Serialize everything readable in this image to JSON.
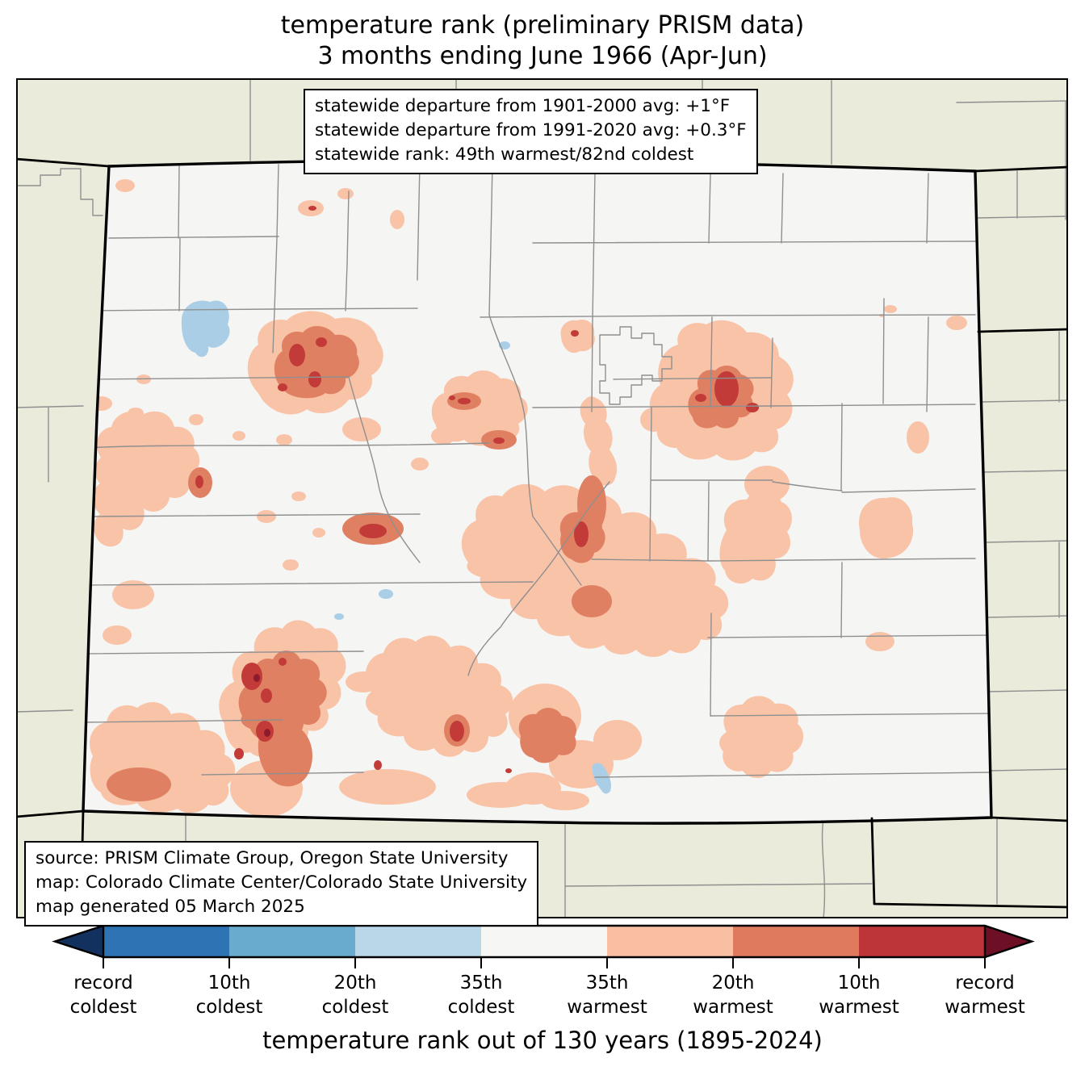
{
  "title": {
    "line1": "temperature rank (preliminary PRISM data)",
    "line2": "3 months ending June 1966 (Apr-Jun)"
  },
  "stats_box": {
    "line1": "statewide departure from 1901-2000 avg: +1°F",
    "line2": "statewide departure from 1991-2020 avg: +0.3°F",
    "line3": "statewide rank: 49th warmest/82nd coldest"
  },
  "source_box": {
    "line1": "source: PRISM Climate Group, Oregon State University",
    "line2": "map: Colorado Climate Center/Colorado State University",
    "line3": "map generated 05 March 2025"
  },
  "map": {
    "region": "Colorado"
  },
  "legend": {
    "caption": "temperature rank out of 130 years (1895-2024)",
    "tick_labels": [
      {
        "top": "record",
        "bottom": "coldest"
      },
      {
        "top": "10th",
        "bottom": "coldest"
      },
      {
        "top": "20th",
        "bottom": "coldest"
      },
      {
        "top": "35th",
        "bottom": "coldest"
      },
      {
        "top": "35th",
        "bottom": "warmest"
      },
      {
        "top": "20th",
        "bottom": "warmest"
      },
      {
        "top": "10th",
        "bottom": "warmest"
      },
      {
        "top": "record",
        "bottom": "warmest"
      }
    ],
    "colors": [
      "#12315f",
      "#2e73b4",
      "#69abce",
      "#b9d7e9",
      "#f6f6f5",
      "#f9bfa3",
      "#e07a5d",
      "#bd3539",
      "#6d1026"
    ]
  },
  "palette": {
    "surrounding": "#ebebdb",
    "state_fill": "#f5f5f4",
    "cool1": "#a9cee5",
    "warm1": "#f9c3a8",
    "warm2": "#e08063",
    "warm3": "#c23b38",
    "warm4": "#8c1b2b",
    "county_line": "#8f8f8f",
    "state_line": "#000000"
  }
}
